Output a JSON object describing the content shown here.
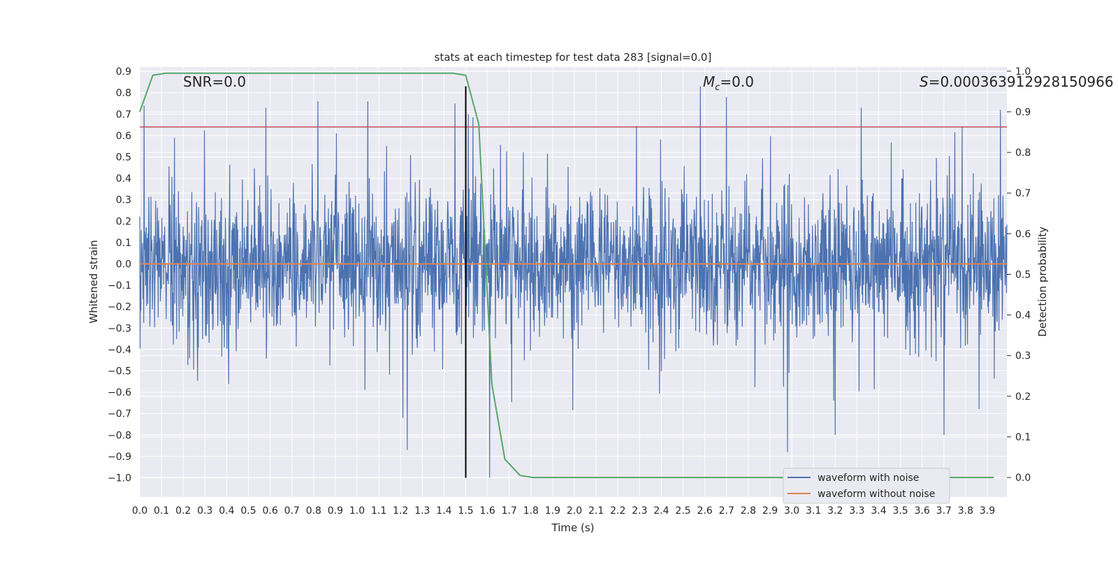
{
  "chart_data": {
    "type": "line",
    "title": "stats at each timestep for test data 283 [signal=0.0]",
    "xlabel": "Time (s)",
    "ylabel": "Whitened strain",
    "ylabel_right": "Detection probability",
    "xlim": [
      0.0,
      3.99
    ],
    "ylim": [
      -1.09,
      0.92
    ],
    "ylim_right": [
      -0.048,
      1.01
    ],
    "x_ticks": [
      "0.0",
      "0.1",
      "0.2",
      "0.3",
      "0.4",
      "0.5",
      "0.6",
      "0.7",
      "0.8",
      "0.9",
      "1.0",
      "1.1",
      "1.2",
      "1.3",
      "1.4",
      "1.5",
      "1.6",
      "1.7",
      "1.8",
      "1.9",
      "2.0",
      "2.1",
      "2.2",
      "2.3",
      "2.4",
      "2.5",
      "2.6",
      "2.7",
      "2.8",
      "2.9",
      "3.0",
      "3.1",
      "3.2",
      "3.3",
      "3.4",
      "3.5",
      "3.6",
      "3.7",
      "3.8",
      "3.9"
    ],
    "y_ticks": [
      "0.9",
      "0.8",
      "0.7",
      "0.6",
      "0.5",
      "0.4",
      "0.3",
      "0.2",
      "0.1",
      "0.0",
      "−0.1",
      "−0.2",
      "−0.3",
      "−0.4",
      "−0.5",
      "−0.6",
      "−0.7",
      "−0.8",
      "−0.9",
      "−1.0"
    ],
    "y_ticks_right": [
      "1.0",
      "0.9",
      "0.8",
      "0.7",
      "0.6",
      "0.5",
      "0.4",
      "0.3",
      "0.2",
      "0.1",
      "0.0"
    ],
    "grid": true,
    "legend_position": "lower-right",
    "annotations": {
      "snr": "SNR=0.0",
      "mc_symbol": "M",
      "mc_sub": "c",
      "mc_value": "=0.0",
      "s_symbol": "S",
      "s_value": "=0.000363912928150966"
    },
    "series": [
      {
        "name": "waveform with noise",
        "color": "#4c72b0",
        "axis": "left",
        "description_values": "noise, amplitude mostly between -0.5 and 0.65, peaks near 0.83 and -1.0",
        "peaks": [
          [
            0.02,
            0.74
          ],
          [
            0.58,
            0.73
          ],
          [
            0.82,
            0.76
          ],
          [
            1.05,
            0.76
          ],
          [
            1.21,
            -0.72
          ],
          [
            1.23,
            -0.87
          ],
          [
            1.45,
            0.75
          ],
          [
            1.5,
            0.83
          ],
          [
            1.61,
            -1.0
          ],
          [
            2.58,
            0.83
          ],
          [
            2.7,
            0.78
          ],
          [
            2.98,
            -0.88
          ],
          [
            3.2,
            -0.8
          ],
          [
            3.32,
            0.73
          ],
          [
            3.7,
            -0.8
          ],
          [
            3.96,
            0.72
          ]
        ]
      },
      {
        "name": "waveform without noise",
        "color": "#dd8452",
        "axis": "left",
        "x": [
          0.0,
          3.99
        ],
        "y": [
          0.0,
          0.0
        ]
      },
      {
        "name": "",
        "color": "#55a868",
        "axis": "right",
        "x": [
          0.0,
          0.06,
          0.12,
          0.2,
          1.44,
          1.5,
          1.56,
          1.62,
          1.68,
          1.75,
          1.81,
          1.9,
          3.93
        ],
        "y": [
          0.9,
          0.99,
          0.995,
          0.995,
          0.995,
          0.99,
          0.87,
          0.23,
          0.045,
          0.005,
          0.0,
          0.0,
          0.0
        ]
      }
    ],
    "reference_lines": [
      {
        "orientation": "horizontal",
        "axis": "left",
        "value": 0.64,
        "color": "#c44e52"
      },
      {
        "orientation": "vertical",
        "value": 1.5,
        "color": "#000000",
        "from": -1.0,
        "to": 0.83
      }
    ]
  }
}
